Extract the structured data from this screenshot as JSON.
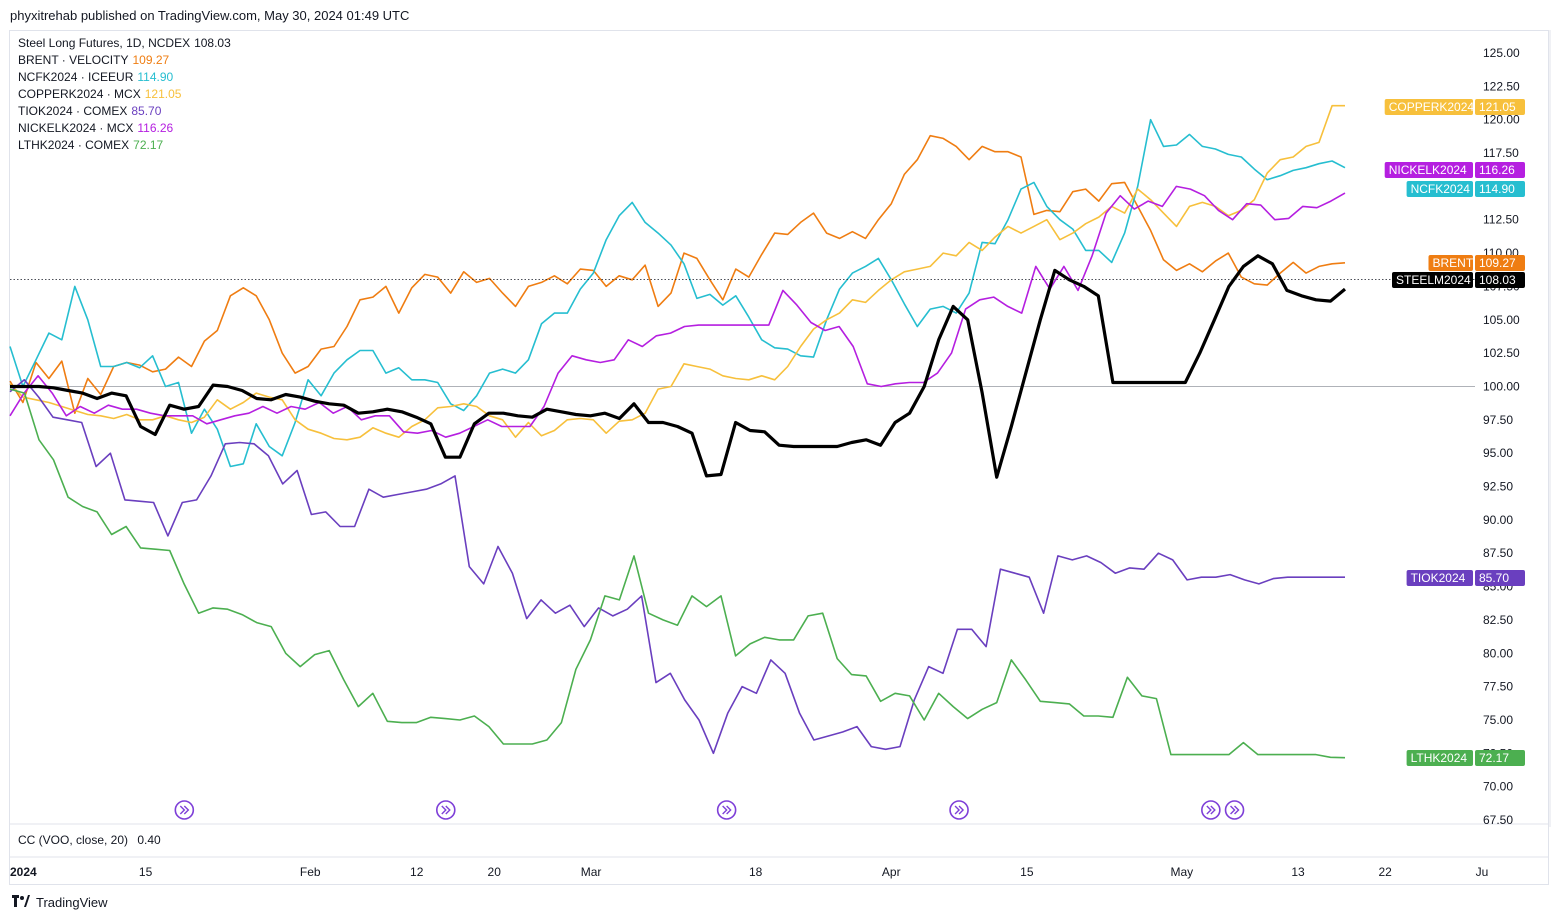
{
  "header": {
    "text": "phyxitrehab published on TradingView.com, May 30, 2024 01:49 UTC"
  },
  "indicator": {
    "label": "CC (VOO, close, 20)",
    "value": "0.40"
  },
  "footer": {
    "brand": "TradingView",
    "logo_icon": "tradingview-logo-icon"
  },
  "chart_data": {
    "type": "line",
    "yaxis": {
      "min": 67.5,
      "max": 125,
      "ticks": [
        "125.00",
        "122.50",
        "120.00",
        "117.50",
        "115.00",
        "112.50",
        "110.00",
        "107.50",
        "105.00",
        "102.50",
        "100.00",
        "97.50",
        "95.00",
        "92.50",
        "90.00",
        "87.50",
        "85.00",
        "82.50",
        "80.00",
        "77.50",
        "75.00",
        "72.50",
        "70.00",
        "67.50"
      ]
    },
    "xaxis": {
      "ticks": [
        {
          "label": "2024",
          "day": 0
        },
        {
          "label": "15",
          "day": 14
        },
        {
          "label": "Feb",
          "day": 31
        },
        {
          "label": "12",
          "day": 42
        },
        {
          "label": "20",
          "day": 50
        },
        {
          "label": "Mar",
          "day": 60
        },
        {
          "label": "18",
          "day": 77
        },
        {
          "label": "Apr",
          "day": 91
        },
        {
          "label": "15",
          "day": 105
        },
        {
          "label": "May",
          "day": 121
        },
        {
          "label": "13",
          "day": 133
        },
        {
          "label": "22",
          "day": 142
        },
        {
          "label": "Ju",
          "day": 152
        }
      ]
    },
    "baseline": 100,
    "series": [
      {
        "name": "BRENT · VELOCITY",
        "ticker": "BRENT",
        "last": "109.27",
        "color": "#ef7d12",
        "width": 1.6,
        "x": [
          0,
          1,
          2,
          3,
          4,
          5,
          6,
          7,
          8,
          9,
          10,
          11,
          12,
          13,
          14,
          15,
          16,
          17,
          18,
          19,
          20,
          21,
          22,
          23,
          24,
          25,
          26,
          27,
          28,
          29,
          30,
          31,
          32,
          33,
          34,
          35,
          36,
          37,
          38,
          39,
          40,
          41,
          42,
          43,
          44,
          45,
          46,
          47,
          48,
          49,
          50,
          51,
          52,
          53,
          54,
          55,
          56,
          57,
          58,
          59,
          60,
          61,
          62,
          63,
          64,
          65,
          66,
          67,
          68,
          69,
          70,
          71,
          72,
          73,
          74,
          75,
          76,
          77,
          78,
          79,
          80,
          81,
          82,
          83,
          84,
          85,
          86,
          87,
          88,
          89,
          90,
          91,
          92,
          93,
          94,
          95,
          96,
          97,
          98,
          99,
          100,
          101,
          102,
          103,
          104,
          105,
          106,
          107,
          108,
          109,
          110,
          111,
          112,
          113,
          114,
          115,
          116,
          117,
          118,
          119,
          120,
          121,
          122,
          123,
          124,
          125,
          126,
          127,
          128,
          129,
          130,
          131,
          132,
          133,
          134,
          135,
          136,
          137
        ],
        "y": [
          100.4,
          98.8,
          101.8,
          100.6,
          101.9,
          98.0,
          100.6,
          99.4,
          101.5,
          101.8,
          101.6,
          101.1,
          101.3,
          102.2,
          101.5,
          103.4,
          104.2,
          106.8,
          107.4,
          106.8,
          105.0,
          102.5,
          101.0,
          101.5,
          102.8,
          103.0,
          104.5,
          106.5,
          106.7,
          107.5,
          105.5,
          107.4,
          108.4,
          108.2,
          107.0,
          108.6,
          107.8,
          108.1,
          107.0,
          106.0,
          107.5,
          107.8,
          108.3,
          107.7,
          108.8,
          108.7,
          107.5,
          108.3,
          108.0,
          109.1,
          106.0,
          107.0,
          110.0,
          109.6,
          108.0,
          106.5,
          108.8,
          108.2,
          109.9,
          111.5,
          111.4,
          112.3,
          113.0,
          111.5,
          111.1,
          111.6,
          111.1,
          112.5,
          113.7,
          115.9,
          117.0,
          118.8,
          118.6,
          118.0,
          117.0,
          118.0,
          117.6,
          117.6,
          117.2,
          112.9,
          113.2,
          113.1,
          114.6,
          114.8,
          113.9,
          115.2,
          115.3,
          113.5,
          111.7,
          109.5,
          108.7,
          109.2,
          108.6,
          109.4,
          110.0,
          108.2,
          107.7,
          107.6,
          108.5,
          109.3,
          108.5,
          109.0,
          109.2,
          108.7,
          109.0,
          109.1,
          109.2,
          109.2,
          109.3,
          109.4,
          109.1,
          109.2,
          109.3,
          109.3,
          109.1,
          109.0,
          109.2,
          109.2,
          109.0,
          108.9,
          109.0,
          109.1,
          109.2,
          109.0,
          109.3,
          109.2,
          109.1,
          109.3,
          109.2,
          109.4,
          109.1,
          109.3,
          109.2,
          109.3,
          109.2,
          109.3,
          109.2,
          109.27
        ]
      },
      {
        "name": "NCFK2024 · ICEEUR",
        "ticker": "NCFK2024",
        "last": "114.90",
        "color": "#26bed0",
        "width": 1.6,
        "x": [],
        "y": []
      },
      {
        "name": "COPPERK2024 · MCX",
        "ticker": "COPPERK2024",
        "last": "121.05",
        "color": "#f7c03c",
        "width": 1.6,
        "x": [],
        "y": []
      },
      {
        "name": "TIOK2024 · COMEX",
        "ticker": "TIOK2024",
        "last": "85.70",
        "color": "#6a3fbf",
        "width": 1.6,
        "x": [],
        "y": []
      },
      {
        "name": "NICKELK2024 · MCX",
        "ticker": "NICKELK2024",
        "last": "116.26",
        "color": "#b51fe0",
        "width": 1.6,
        "x": [],
        "y": []
      },
      {
        "name": "LTHK2024 · COMEX",
        "ticker": "LTHK2024",
        "last": "72.17",
        "color": "#4caf50",
        "width": 1.6,
        "x": [],
        "y": []
      },
      {
        "name": "Steel Long Futures, 1D, NCDEX",
        "ticker": "STEELM2024",
        "last": "108.03",
        "color": "#000000",
        "width": 3.2,
        "x": [],
        "y": []
      }
    ],
    "legend_order": [
      6,
      0,
      1,
      2,
      3,
      4,
      5
    ],
    "event_icon": "fast-forward-circle-icon",
    "events_day": [
      18,
      45,
      74,
      98,
      124,
      125
    ]
  }
}
